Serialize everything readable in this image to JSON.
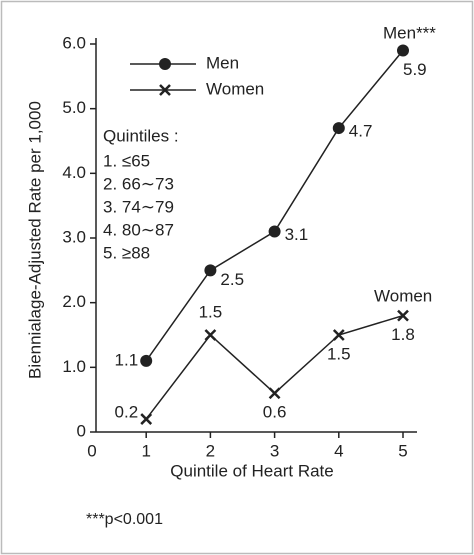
{
  "chart_data": {
    "type": "line",
    "x_label": "Quintile of Heart Rate",
    "y_label": "Biennialage-Adjusted Rate per 1,000",
    "x": [
      1,
      2,
      3,
      4,
      5
    ],
    "series": [
      {
        "name": "Men",
        "color": "#222222",
        "marker": "circle",
        "values": [
          1.1,
          2.5,
          3.1,
          4.7,
          5.9
        ]
      },
      {
        "name": "Women",
        "color": "#222222",
        "marker": "x",
        "values": [
          0.2,
          1.5,
          0.6,
          1.5,
          1.8
        ]
      }
    ],
    "xlim": [
      0,
      5
    ],
    "xticks": [
      0,
      1,
      2,
      3,
      4,
      5
    ],
    "ylim": [
      0,
      6
    ],
    "yticks": [
      0,
      {
        "value": 1,
        "label": "1.0"
      },
      {
        "value": 2,
        "label": "2.0"
      },
      {
        "value": 3,
        "label": "3.0"
      },
      {
        "value": 4,
        "label": "4.0"
      },
      {
        "value": 5,
        "label": "5.0"
      },
      {
        "value": 6,
        "label": "6.0"
      }
    ],
    "annotations": [
      "Men***",
      "Women"
    ],
    "quintiles_title": "Quintiles :",
    "quintiles": [
      "1. ≤65",
      "2. 66∼73",
      "3. 74∼79",
      "4. 80∼87",
      "5. ≥88"
    ],
    "footnote": "***p<0.001"
  }
}
